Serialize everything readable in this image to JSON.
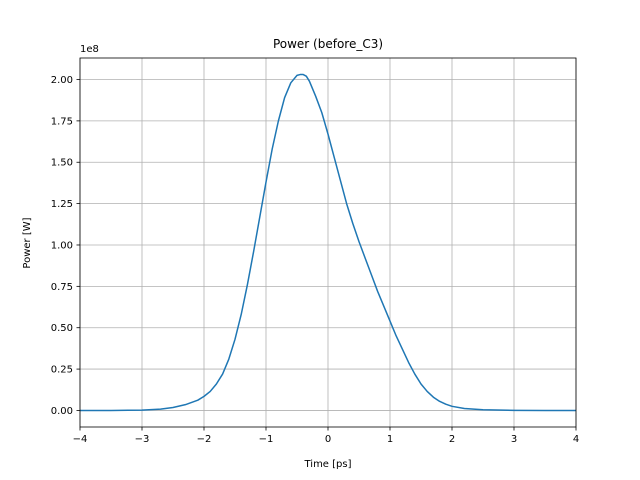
{
  "chart_data": {
    "type": "line",
    "title": "Power (before_C3)",
    "xlabel": "Time [ps]",
    "ylabel": "Power [W]",
    "y_offset_text": "1e8",
    "xlim": [
      -4,
      4
    ],
    "ylim": [
      -0.1,
      2.13
    ],
    "xticks": [
      -4,
      -3,
      -2,
      -1,
      0,
      1,
      2,
      3,
      4
    ],
    "xtick_labels": [
      "−4",
      "−3",
      "−2",
      "−1",
      "0",
      "1",
      "2",
      "3",
      "4"
    ],
    "yticks": [
      0,
      0.25,
      0.5,
      0.75,
      1.0,
      1.25,
      1.5,
      1.75,
      2.0
    ],
    "ytick_labels": [
      "0.00",
      "0.25",
      "0.50",
      "0.75",
      "1.00",
      "1.25",
      "1.50",
      "1.75",
      "2.00"
    ],
    "grid": true,
    "series": [
      {
        "color": "#1f77b4",
        "x": [
          -4.0,
          -3.5,
          -3.0,
          -2.7,
          -2.5,
          -2.3,
          -2.1,
          -2.0,
          -1.9,
          -1.8,
          -1.7,
          -1.6,
          -1.5,
          -1.4,
          -1.3,
          -1.2,
          -1.1,
          -1.0,
          -0.9,
          -0.8,
          -0.7,
          -0.6,
          -0.5,
          -0.45,
          -0.4,
          -0.35,
          -0.3,
          -0.2,
          -0.1,
          0.0,
          0.1,
          0.2,
          0.3,
          0.4,
          0.5,
          0.6,
          0.7,
          0.8,
          0.9,
          1.0,
          1.1,
          1.2,
          1.3,
          1.4,
          1.5,
          1.6,
          1.7,
          1.8,
          1.9,
          2.0,
          2.2,
          2.5,
          3.0,
          3.5,
          4.0
        ],
        "y": [
          0.0,
          0.0,
          0.002,
          0.008,
          0.018,
          0.035,
          0.062,
          0.085,
          0.115,
          0.16,
          0.22,
          0.31,
          0.43,
          0.58,
          0.76,
          0.96,
          1.17,
          1.38,
          1.58,
          1.75,
          1.89,
          1.98,
          2.025,
          2.03,
          2.03,
          2.02,
          1.99,
          1.9,
          1.8,
          1.67,
          1.53,
          1.39,
          1.25,
          1.13,
          1.02,
          0.92,
          0.82,
          0.72,
          0.63,
          0.54,
          0.45,
          0.37,
          0.29,
          0.22,
          0.16,
          0.115,
          0.08,
          0.055,
          0.038,
          0.025,
          0.012,
          0.004,
          0.0008,
          0.0001,
          0.0
        ]
      }
    ]
  }
}
